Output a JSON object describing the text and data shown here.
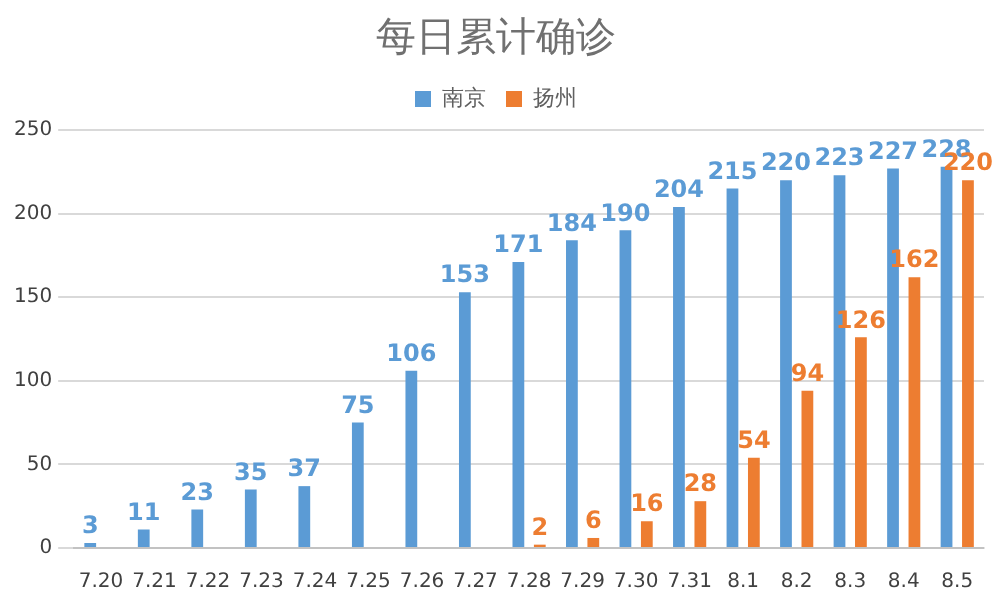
{
  "chart_data": {
    "type": "bar",
    "title": "每日累计确诊",
    "categories": [
      "7.20",
      "7.21",
      "7.22",
      "7.23",
      "7.24",
      "7.25",
      "7.26",
      "7.27",
      "7.28",
      "7.29",
      "7.30",
      "7.31",
      "8.1",
      "8.2",
      "8.3",
      "8.4",
      "8.5"
    ],
    "series": [
      {
        "name": "南京",
        "color": "#5b9bd5",
        "values": [
          3,
          11,
          23,
          35,
          37,
          75,
          106,
          153,
          171,
          184,
          190,
          204,
          215,
          220,
          223,
          227,
          228
        ]
      },
      {
        "name": "扬州",
        "color": "#ed7d31",
        "values": [
          null,
          null,
          null,
          null,
          null,
          null,
          null,
          null,
          2,
          6,
          16,
          28,
          54,
          94,
          126,
          162,
          220
        ]
      }
    ],
    "ylim": [
      0,
      250
    ],
    "yticks": [
      0,
      50,
      100,
      150,
      200,
      250
    ],
    "grid": "y",
    "legend": "top",
    "data_labels": true
  }
}
